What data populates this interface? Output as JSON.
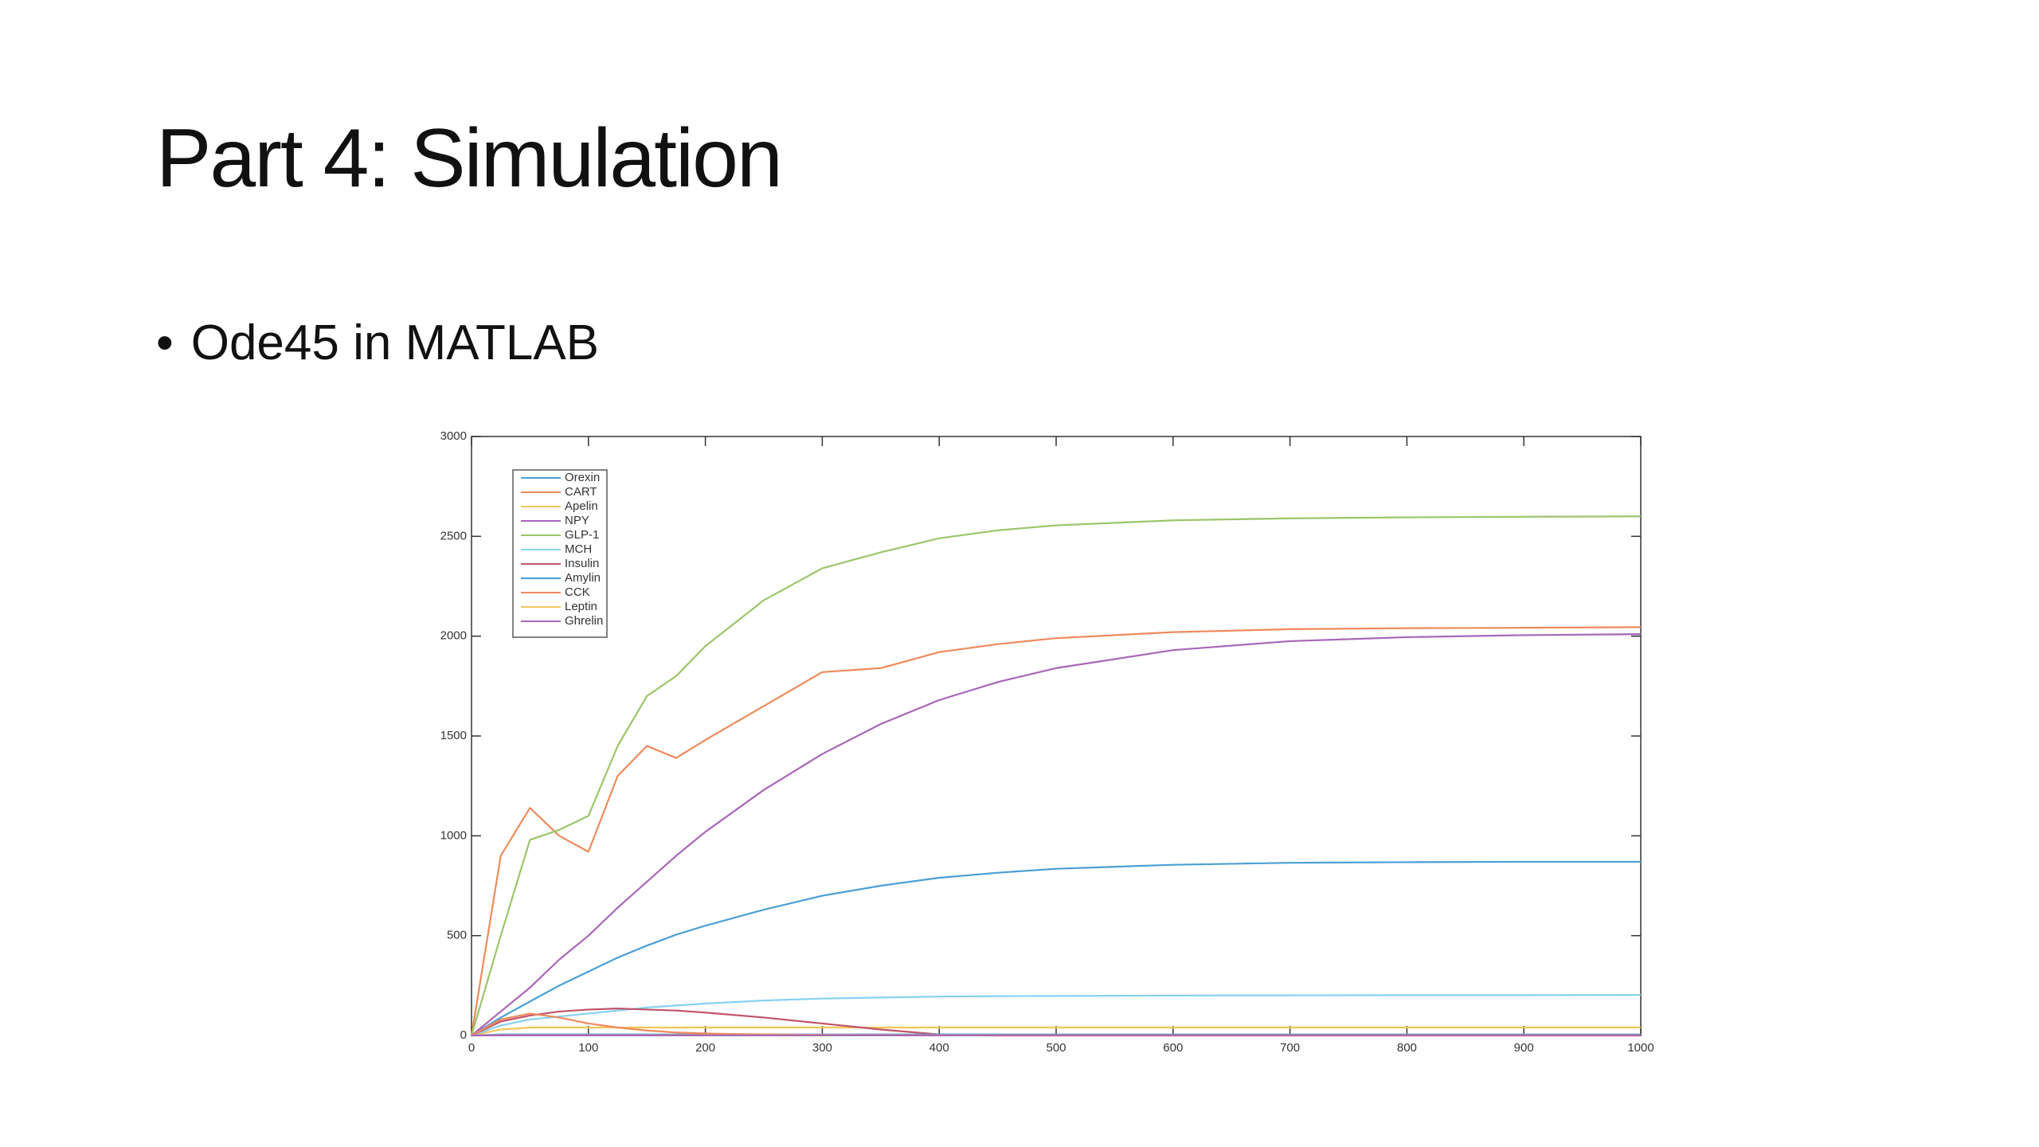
{
  "slide": {
    "title": "Part 4: Simulation",
    "bullets": [
      "Ode45 in MATLAB"
    ]
  },
  "chart_data": {
    "type": "line",
    "x": [
      0,
      25,
      50,
      75,
      100,
      125,
      150,
      175,
      200,
      250,
      300,
      350,
      400,
      450,
      500,
      600,
      700,
      800,
      900,
      1000
    ],
    "series": [
      {
        "name": "Orexin",
        "color": "#4a9fd6",
        "values": [
          0,
          90,
          170,
          250,
          320,
          390,
          450,
          505,
          550,
          630,
          700,
          750,
          790,
          815,
          835,
          855,
          865,
          868,
          870,
          870
        ]
      },
      {
        "name": "CART",
        "color": "#ee8a5c",
        "values": [
          0,
          900,
          1140,
          1000,
          920,
          1300,
          1450,
          1390,
          1480,
          1650,
          1820,
          1840,
          1920,
          1960,
          1990,
          2020,
          2035,
          2040,
          2042,
          2045
        ]
      },
      {
        "name": "Apelin",
        "color": "#f2c65c",
        "values": [
          0,
          30,
          40,
          40,
          40,
          40,
          40,
          40,
          40,
          40,
          40,
          40,
          40,
          40,
          40,
          40,
          40,
          40,
          40,
          40
        ]
      },
      {
        "name": "NPY",
        "color": "#a866b8",
        "values": [
          0,
          120,
          240,
          380,
          500,
          640,
          770,
          900,
          1020,
          1230,
          1410,
          1560,
          1680,
          1770,
          1840,
          1930,
          1975,
          1995,
          2005,
          2010
        ]
      },
      {
        "name": "GLP-1",
        "color": "#9cc56a",
        "values": [
          0,
          500,
          980,
          1030,
          1100,
          1450,
          1700,
          1800,
          1950,
          2180,
          2340,
          2420,
          2490,
          2530,
          2555,
          2580,
          2590,
          2595,
          2598,
          2600
        ]
      },
      {
        "name": "MCH",
        "color": "#86d2f2",
        "values": [
          0,
          50,
          80,
          95,
          110,
          125,
          140,
          150,
          160,
          175,
          185,
          190,
          195,
          197,
          198,
          200,
          201,
          202,
          202,
          203
        ]
      },
      {
        "name": "Insulin",
        "color": "#c0546a",
        "values": [
          0,
          70,
          100,
          120,
          130,
          135,
          130,
          125,
          115,
          90,
          60,
          30,
          5,
          0,
          0,
          0,
          0,
          0,
          0,
          0
        ]
      },
      {
        "name": "Amylin",
        "color": "#4a9fd6",
        "values": [
          0,
          5,
          5,
          5,
          5,
          5,
          5,
          5,
          5,
          5,
          5,
          5,
          5,
          5,
          5,
          5,
          5,
          5,
          5,
          5
        ]
      },
      {
        "name": "CCK",
        "color": "#ee8a5c",
        "values": [
          0,
          80,
          110,
          90,
          60,
          40,
          25,
          15,
          10,
          5,
          3,
          2,
          1,
          0,
          0,
          0,
          0,
          0,
          0,
          0
        ]
      },
      {
        "name": "Leptin",
        "color": "#f2c65c",
        "values": [
          0,
          2,
          2,
          2,
          2,
          2,
          2,
          2,
          2,
          2,
          2,
          2,
          2,
          2,
          2,
          2,
          2,
          2,
          2,
          2
        ]
      },
      {
        "name": "Ghrelin",
        "color": "#a866b8",
        "values": [
          0,
          1,
          1,
          1,
          1,
          1,
          1,
          1,
          1,
          1,
          1,
          1,
          1,
          1,
          1,
          1,
          1,
          1,
          1,
          1
        ]
      }
    ],
    "xlim": [
      0,
      1000
    ],
    "ylim": [
      0,
      3000
    ],
    "xticks": [
      0,
      100,
      200,
      300,
      400,
      500,
      600,
      700,
      800,
      900,
      1000
    ],
    "yticks": [
      0,
      500,
      1000,
      1500,
      2000,
      2500,
      3000
    ],
    "legend": "upper-left"
  }
}
